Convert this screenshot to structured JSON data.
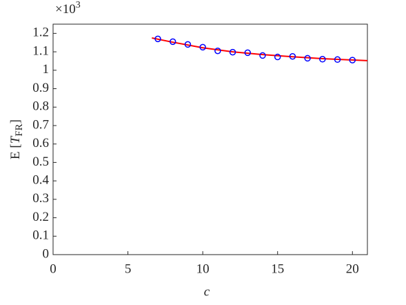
{
  "chart_data": {
    "type": "line",
    "xlabel": "c",
    "ylabel": {
      "main": "E [",
      "symbol": "T",
      "subscript": "FR",
      "close": "]"
    },
    "multiplier": {
      "base": "×10",
      "exponent": "3"
    },
    "xlim": [
      0,
      21
    ],
    "ylim": [
      0,
      1.25
    ],
    "xticks": [
      0,
      5,
      10,
      15,
      20
    ],
    "yticks": [
      0,
      0.1,
      0.2,
      0.3,
      0.4,
      0.5,
      0.6,
      0.7,
      0.8,
      0.9,
      1,
      1.1,
      1.2
    ],
    "series": [
      {
        "color": "#ff0000",
        "style": "line",
        "x": [
          6.6,
          8,
          10,
          12,
          14,
          16,
          18,
          21
        ],
        "values": [
          1.175,
          1.152,
          1.122,
          1.1,
          1.085,
          1.073,
          1.063,
          1.052
        ]
      },
      {
        "color": "#0000ff",
        "style": "marker",
        "x": [
          7,
          8,
          9,
          10,
          11,
          12,
          13,
          14,
          15,
          16,
          17,
          18,
          19,
          20
        ],
        "values": [
          1.17,
          1.155,
          1.14,
          1.125,
          1.105,
          1.098,
          1.095,
          1.08,
          1.072,
          1.075,
          1.065,
          1.06,
          1.058,
          1.055
        ]
      }
    ]
  }
}
